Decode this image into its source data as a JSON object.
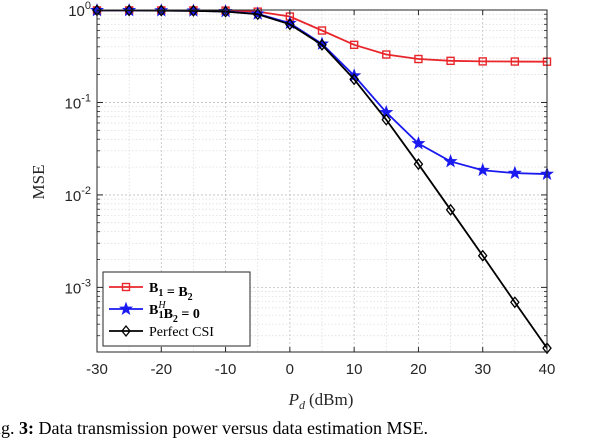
{
  "chart_data": {
    "type": "line",
    "xlabel_var": "P",
    "xlabel_sub": "d",
    "xlabel_unit": "(dBm)",
    "ylabel": "MSE",
    "xlim": [
      -30,
      40
    ],
    "ylim": [
      0.0002,
      1
    ],
    "yscale": "log",
    "grid": true,
    "legend_position": "bottom-left",
    "x_ticks": [
      "-30",
      "-20",
      "-10",
      "0",
      "10",
      "20",
      "30",
      "40"
    ],
    "y_ticks": [
      {
        "base": "10",
        "exp": "0"
      },
      {
        "base": "10",
        "exp": "-1"
      },
      {
        "base": "10",
        "exp": "-2"
      },
      {
        "base": "10",
        "exp": "-3"
      }
    ],
    "x": [
      -30,
      -25,
      -20,
      -15,
      -10,
      -5,
      0,
      5,
      10,
      15,
      20,
      25,
      30,
      35,
      40
    ],
    "series": [
      {
        "name_parts": {
          "a": "B",
          "a_sub": "1",
          "op": " = ",
          "b": "B",
          "b_sub": "2"
        },
        "color": "#e8262b",
        "marker": "square",
        "values": [
          0.99,
          0.99,
          0.99,
          0.99,
          0.985,
          0.96,
          0.85,
          0.6,
          0.42,
          0.33,
          0.295,
          0.282,
          0.278,
          0.277,
          0.276
        ]
      },
      {
        "name_parts": {
          "a": "B",
          "a_sub": "1",
          "a_sup": "H",
          "op": "",
          "b": "B",
          "b_sub": "2",
          "rhs": " = 0"
        },
        "color": "#1a1af0",
        "marker": "star",
        "values": [
          0.99,
          0.99,
          0.985,
          0.98,
          0.965,
          0.91,
          0.72,
          0.43,
          0.195,
          0.078,
          0.036,
          0.023,
          0.0185,
          0.0172,
          0.0168
        ]
      },
      {
        "name": "Perfect CSI",
        "color": "#000000",
        "marker": "diamond",
        "values": [
          0.99,
          0.99,
          0.985,
          0.98,
          0.96,
          0.9,
          0.7,
          0.42,
          0.178,
          0.065,
          0.0215,
          0.0069,
          0.0022,
          0.00069,
          0.00022
        ]
      }
    ]
  },
  "caption": {
    "prefix": "Fig.",
    "number": "3:",
    "text": " Data transmission power versus data estimation MSE."
  }
}
